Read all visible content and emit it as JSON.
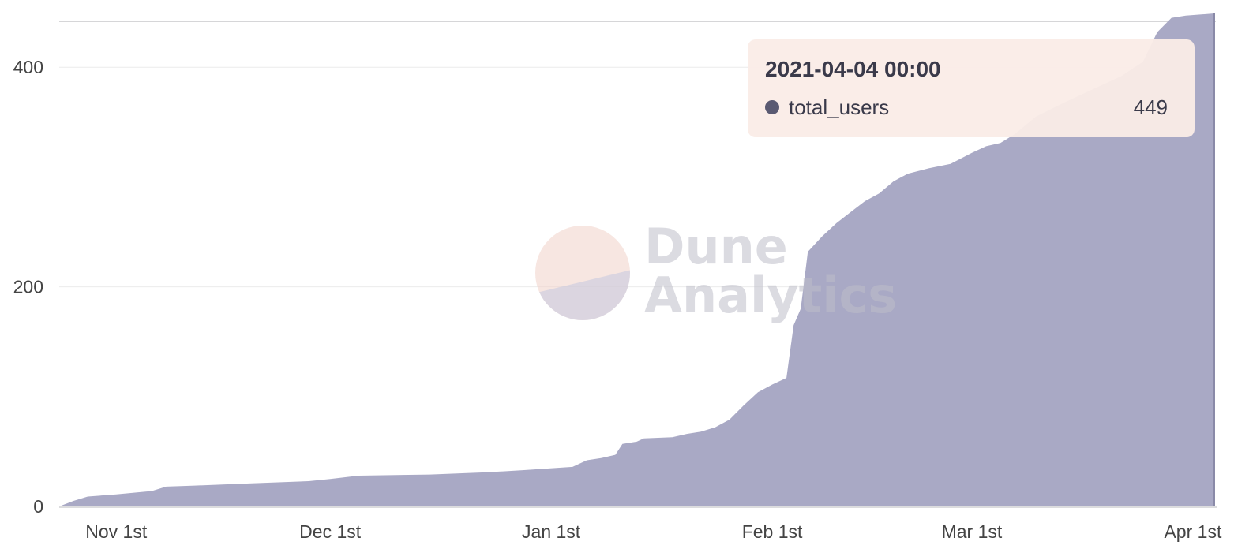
{
  "colors": {
    "area_fill": "#a9a9c5",
    "hover_line": "#8a8aa8",
    "grid": "#ececec",
    "top_line": "#c8c8cc",
    "tooltip_bg": "#faece7",
    "tooltip_dot": "#5a5a72"
  },
  "watermark": {
    "line1": "Dune",
    "line2": "Analytics"
  },
  "tooltip": {
    "title": "2021-04-04 00:00",
    "series_name": "total_users",
    "value": "449"
  },
  "chart_data": {
    "type": "area",
    "title": "",
    "xlabel": "",
    "ylabel": "",
    "grid": true,
    "ylim": [
      0,
      449
    ],
    "xlim": [
      "2020-10-24",
      "2021-04-04"
    ],
    "yticks": [
      {
        "value": 0,
        "label": "0"
      },
      {
        "value": 200,
        "label": "200"
      },
      {
        "value": 400,
        "label": "400"
      }
    ],
    "xticks": [
      {
        "value": "2020-11-01",
        "label": "Nov 1st"
      },
      {
        "value": "2020-12-01",
        "label": "Dec 1st"
      },
      {
        "value": "2021-01-01",
        "label": "Jan 1st"
      },
      {
        "value": "2021-02-01",
        "label": "Feb 1st"
      },
      {
        "value": "2021-03-01",
        "label": "Mar 1st"
      },
      {
        "value": "2021-04-01",
        "label": "Apr 1st"
      }
    ],
    "series": [
      {
        "name": "total_users",
        "points": [
          [
            "2020-10-24",
            0
          ],
          [
            "2020-10-26",
            5
          ],
          [
            "2020-10-28",
            9
          ],
          [
            "2020-11-01",
            11
          ],
          [
            "2020-11-06",
            14
          ],
          [
            "2020-11-08",
            18
          ],
          [
            "2020-11-12",
            19
          ],
          [
            "2020-11-20",
            21
          ],
          [
            "2020-11-28",
            23
          ],
          [
            "2020-12-01",
            25
          ],
          [
            "2020-12-05",
            28
          ],
          [
            "2020-12-15",
            29
          ],
          [
            "2020-12-23",
            31
          ],
          [
            "2020-12-28",
            33
          ],
          [
            "2021-01-04",
            36
          ],
          [
            "2021-01-06",
            42
          ],
          [
            "2021-01-08",
            44
          ],
          [
            "2021-01-10",
            47
          ],
          [
            "2021-01-11",
            57
          ],
          [
            "2021-01-13",
            59
          ],
          [
            "2021-01-14",
            62
          ],
          [
            "2021-01-18",
            63
          ],
          [
            "2021-01-20",
            66
          ],
          [
            "2021-01-22",
            68
          ],
          [
            "2021-01-24",
            72
          ],
          [
            "2021-01-26",
            79
          ],
          [
            "2021-01-28",
            92
          ],
          [
            "2021-01-30",
            104
          ],
          [
            "2021-02-01",
            111
          ],
          [
            "2021-02-03",
            117
          ],
          [
            "2021-02-04",
            165
          ],
          [
            "2021-02-05",
            180
          ],
          [
            "2021-02-06",
            232
          ],
          [
            "2021-02-08",
            246
          ],
          [
            "2021-02-10",
            258
          ],
          [
            "2021-02-12",
            268
          ],
          [
            "2021-02-14",
            278
          ],
          [
            "2021-02-16",
            285
          ],
          [
            "2021-02-18",
            296
          ],
          [
            "2021-02-20",
            303
          ],
          [
            "2021-02-23",
            308
          ],
          [
            "2021-02-26",
            312
          ],
          [
            "2021-03-01",
            322
          ],
          [
            "2021-03-03",
            328
          ],
          [
            "2021-03-05",
            331
          ],
          [
            "2021-03-07",
            339
          ],
          [
            "2021-03-10",
            355
          ],
          [
            "2021-03-14",
            368
          ],
          [
            "2021-03-18",
            380
          ],
          [
            "2021-03-22",
            392
          ],
          [
            "2021-03-25",
            405
          ],
          [
            "2021-03-27",
            432
          ],
          [
            "2021-03-29",
            445
          ],
          [
            "2021-03-31",
            447
          ],
          [
            "2021-04-02",
            448
          ],
          [
            "2021-04-04",
            449
          ]
        ]
      }
    ],
    "hover": {
      "x": "2021-04-04",
      "y": 449
    }
  }
}
